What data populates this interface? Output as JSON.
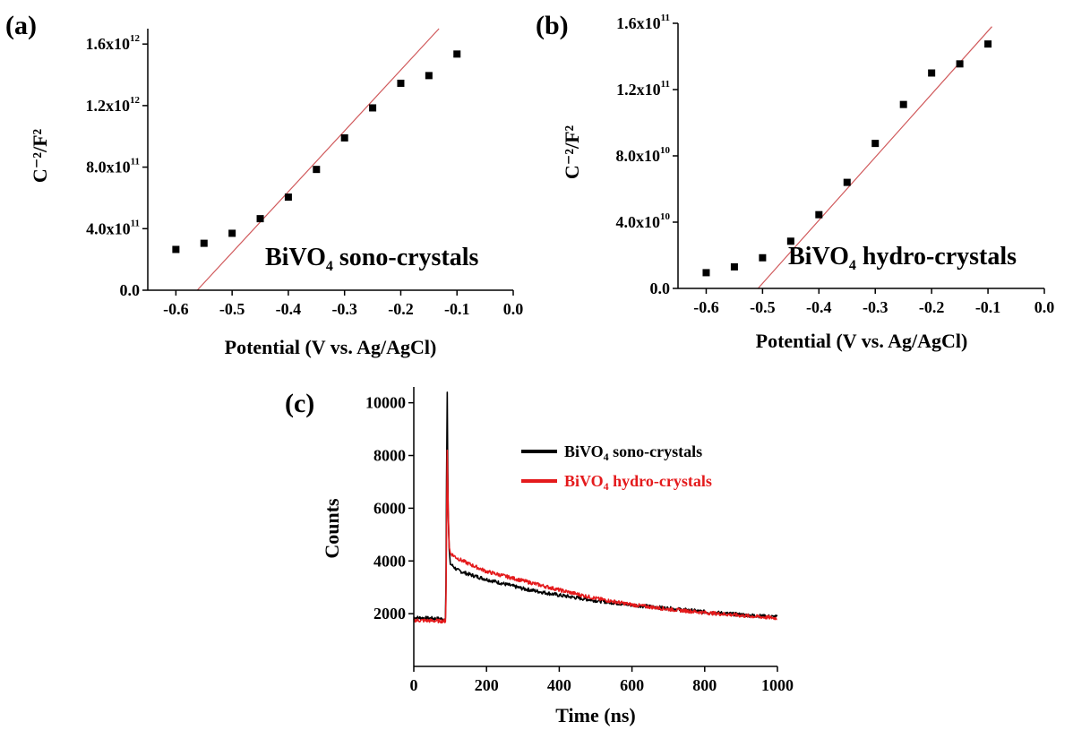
{
  "chart_data": [
    {
      "id": "a",
      "type": "scatter",
      "panel_label": "(a)",
      "xlabel": "Potential (V vs. Ag/AgCl)",
      "ylabel": "C⁻²/F²",
      "annotation": {
        "main": "BiVO",
        "sub": "4",
        "rest": " sono-crystals"
      },
      "xlim": [
        -0.65,
        0.0
      ],
      "ylim": [
        0,
        1700000000000.0
      ],
      "xticks": [
        -0.6,
        -0.5,
        -0.4,
        -0.3,
        -0.2,
        -0.1,
        0.0
      ],
      "xtick_labels": [
        "-0.6",
        "-0.5",
        "-0.4",
        "-0.3",
        "-0.2",
        "-0.1",
        "0.0"
      ],
      "yticks": [
        0,
        400000000000.0,
        800000000000.0,
        1200000000000.0,
        1600000000000.0
      ],
      "ytick_labels": [
        {
          "base": "0.0",
          "exp": ""
        },
        {
          "base": "4.0x10",
          "exp": "11"
        },
        {
          "base": "8.0x10",
          "exp": "11"
        },
        {
          "base": "1.2x10",
          "exp": "12"
        },
        {
          "base": "1.6x10",
          "exp": "12"
        }
      ],
      "points": {
        "x": [
          -0.6,
          -0.55,
          -0.5,
          -0.45,
          -0.4,
          -0.35,
          -0.3,
          -0.25,
          -0.2,
          -0.15,
          -0.1
        ],
        "y": [
          265000000000.0,
          305000000000.0,
          370000000000.0,
          465000000000.0,
          605000000000.0,
          785000000000.0,
          990000000000.0,
          1185000000000.0,
          1345000000000.0,
          1395000000000.0,
          1535000000000.0
        ]
      },
      "fit_line": {
        "x": [
          -0.562,
          -0.132
        ],
        "y": [
          0,
          1700000000000.0
        ],
        "color": "#d0595b"
      }
    },
    {
      "id": "b",
      "type": "scatter",
      "panel_label": "(b)",
      "xlabel": "Potential (V vs. Ag/AgCl)",
      "ylabel": "C⁻²/F²",
      "annotation": {
        "main": "BiVO",
        "sub": "4",
        "rest": " hydro-crystals"
      },
      "xlim": [
        -0.65,
        0.0
      ],
      "ylim": [
        0,
        160000000000.0
      ],
      "xticks": [
        -0.6,
        -0.5,
        -0.4,
        -0.3,
        -0.2,
        -0.1,
        0.0
      ],
      "xtick_labels": [
        "-0.6",
        "-0.5",
        "-0.4",
        "-0.3",
        "-0.2",
        "-0.1",
        "0.0"
      ],
      "yticks": [
        0,
        40000000000.0,
        80000000000.0,
        120000000000.0,
        160000000000.0
      ],
      "ytick_labels": [
        {
          "base": "0.0",
          "exp": ""
        },
        {
          "base": "4.0x10",
          "exp": "10"
        },
        {
          "base": "8.0x10",
          "exp": "10"
        },
        {
          "base": "1.2x10",
          "exp": "11"
        },
        {
          "base": "1.6x10",
          "exp": "11"
        }
      ],
      "points": {
        "x": [
          -0.6,
          -0.55,
          -0.5,
          -0.45,
          -0.4,
          -0.35,
          -0.3,
          -0.25,
          -0.2,
          -0.15,
          -0.1
        ],
        "y": [
          9500000000.0,
          13000000000.0,
          18500000000.0,
          28500000000.0,
          44500000000.0,
          64000000000.0,
          87500000000.0,
          111000000000.0,
          130000000000.0,
          135500000000.0,
          147500000000.0
        ]
      },
      "fit_line": {
        "x": [
          -0.508,
          -0.093
        ],
        "y": [
          0,
          158000000000.0
        ],
        "color": "#d0595b"
      }
    },
    {
      "id": "c",
      "type": "line",
      "panel_label": "(c)",
      "xlabel": "Time (ns)",
      "ylabel": "Counts",
      "xlim": [
        0,
        1000
      ],
      "ylim": [
        0,
        10600
      ],
      "xticks": [
        0,
        200,
        400,
        600,
        800,
        1000
      ],
      "xtick_labels": [
        "0",
        "200",
        "400",
        "600",
        "800",
        "1000"
      ],
      "yticks": [
        2000,
        4000,
        6000,
        8000,
        10000
      ],
      "ytick_labels": [
        "2000",
        "4000",
        "6000",
        "8000",
        "10000"
      ],
      "series": [
        {
          "name": "BiVO4 sono-crystals",
          "legend": {
            "main": "BiVO",
            "sub": "4",
            "rest": " sono-crystals"
          },
          "color": "#000000",
          "x": [
            0,
            80,
            88,
            90,
            92,
            94,
            97,
            100,
            120,
            150,
            200,
            300,
            400,
            500,
            600,
            700,
            800,
            900,
            1000
          ],
          "y": [
            1850,
            1800,
            1800,
            7000,
            10400,
            6200,
            4500,
            3900,
            3650,
            3500,
            3300,
            2950,
            2700,
            2500,
            2330,
            2200,
            2070,
            1960,
            1870
          ]
        },
        {
          "name": "BiVO4 hydro-crystals",
          "legend": {
            "main": "BiVO",
            "sub": "4",
            "rest": " hydro-crystals"
          },
          "color": "#e41a1c",
          "x": [
            0,
            80,
            88,
            90,
            92,
            94,
            97,
            100,
            120,
            150,
            200,
            300,
            400,
            500,
            600,
            700,
            800,
            900,
            1000
          ],
          "y": [
            1750,
            1720,
            1720,
            5000,
            8200,
            6300,
            4600,
            4300,
            4100,
            3900,
            3600,
            3250,
            2900,
            2580,
            2340,
            2170,
            2040,
            1930,
            1830
          ]
        }
      ]
    }
  ]
}
